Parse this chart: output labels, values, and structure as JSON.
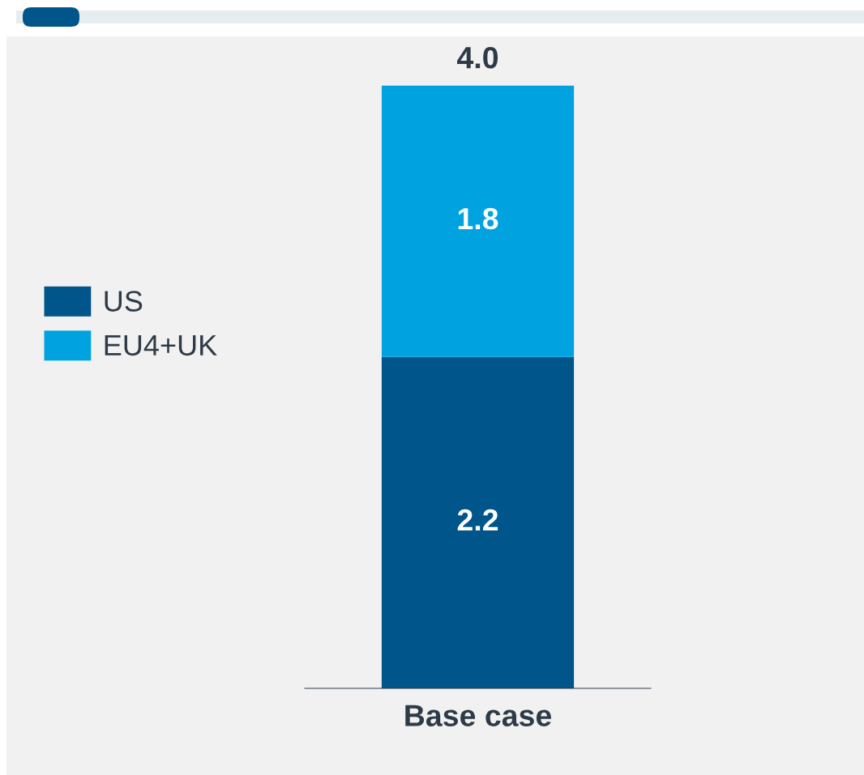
{
  "chart_data": {
    "type": "bar",
    "stacked": true,
    "categories": [
      "Base case"
    ],
    "series": [
      {
        "name": "US",
        "color": "#00558a",
        "values": [
          2.2
        ]
      },
      {
        "name": "EU4+UK",
        "color": "#00a3e0",
        "values": [
          1.8
        ]
      }
    ],
    "data_labels": true,
    "totals": [
      "4.0"
    ],
    "legend": "left"
  }
}
